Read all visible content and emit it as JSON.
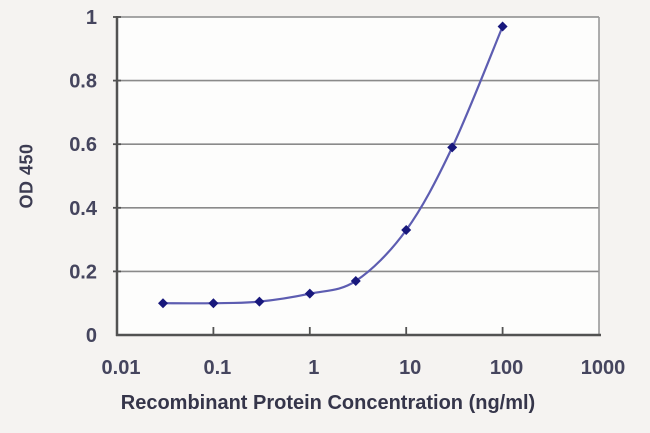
{
  "figure": {
    "background": "#f5f3f1",
    "plot_background": "#fdfdfc"
  },
  "chart_data": {
    "type": "line",
    "title": "",
    "xlabel": "Recombinant Protein Concentration (ng/ml)",
    "ylabel": "OD 450",
    "x_scale": "log",
    "y_scale": "linear",
    "xlim": [
      0.01,
      1000
    ],
    "ylim": [
      0,
      1
    ],
    "x_tick_values": [
      0.01,
      0.1,
      1,
      10,
      100,
      1000
    ],
    "x_tick_labels": [
      "0.01",
      "0.1",
      "1",
      "10",
      "100",
      "1000"
    ],
    "y_tick_values": [
      0,
      0.2,
      0.4,
      0.6,
      0.8,
      1
    ],
    "y_tick_labels": [
      "0",
      "0.2",
      "0.4",
      "0.6",
      "0.8",
      "1"
    ],
    "grid": "horizontal",
    "legend": "none",
    "series": [
      {
        "name": "OD 450",
        "x": [
          0.03,
          0.1,
          0.3,
          1,
          3,
          10,
          30,
          100
        ],
        "y": [
          0.1,
          0.1,
          0.105,
          0.13,
          0.17,
          0.33,
          0.59,
          0.97
        ],
        "line_color": "#5d5db1",
        "line_width": 2.2,
        "marker": "diamond",
        "marker_color": "#18187c",
        "marker_size": 5,
        "smooth": true
      }
    ],
    "colors": {
      "gridline": "#8a8a8a",
      "axis": "#525252",
      "border": "#9a9a9a",
      "tick_label": "#45455e",
      "axis_label": "#35354a"
    }
  }
}
